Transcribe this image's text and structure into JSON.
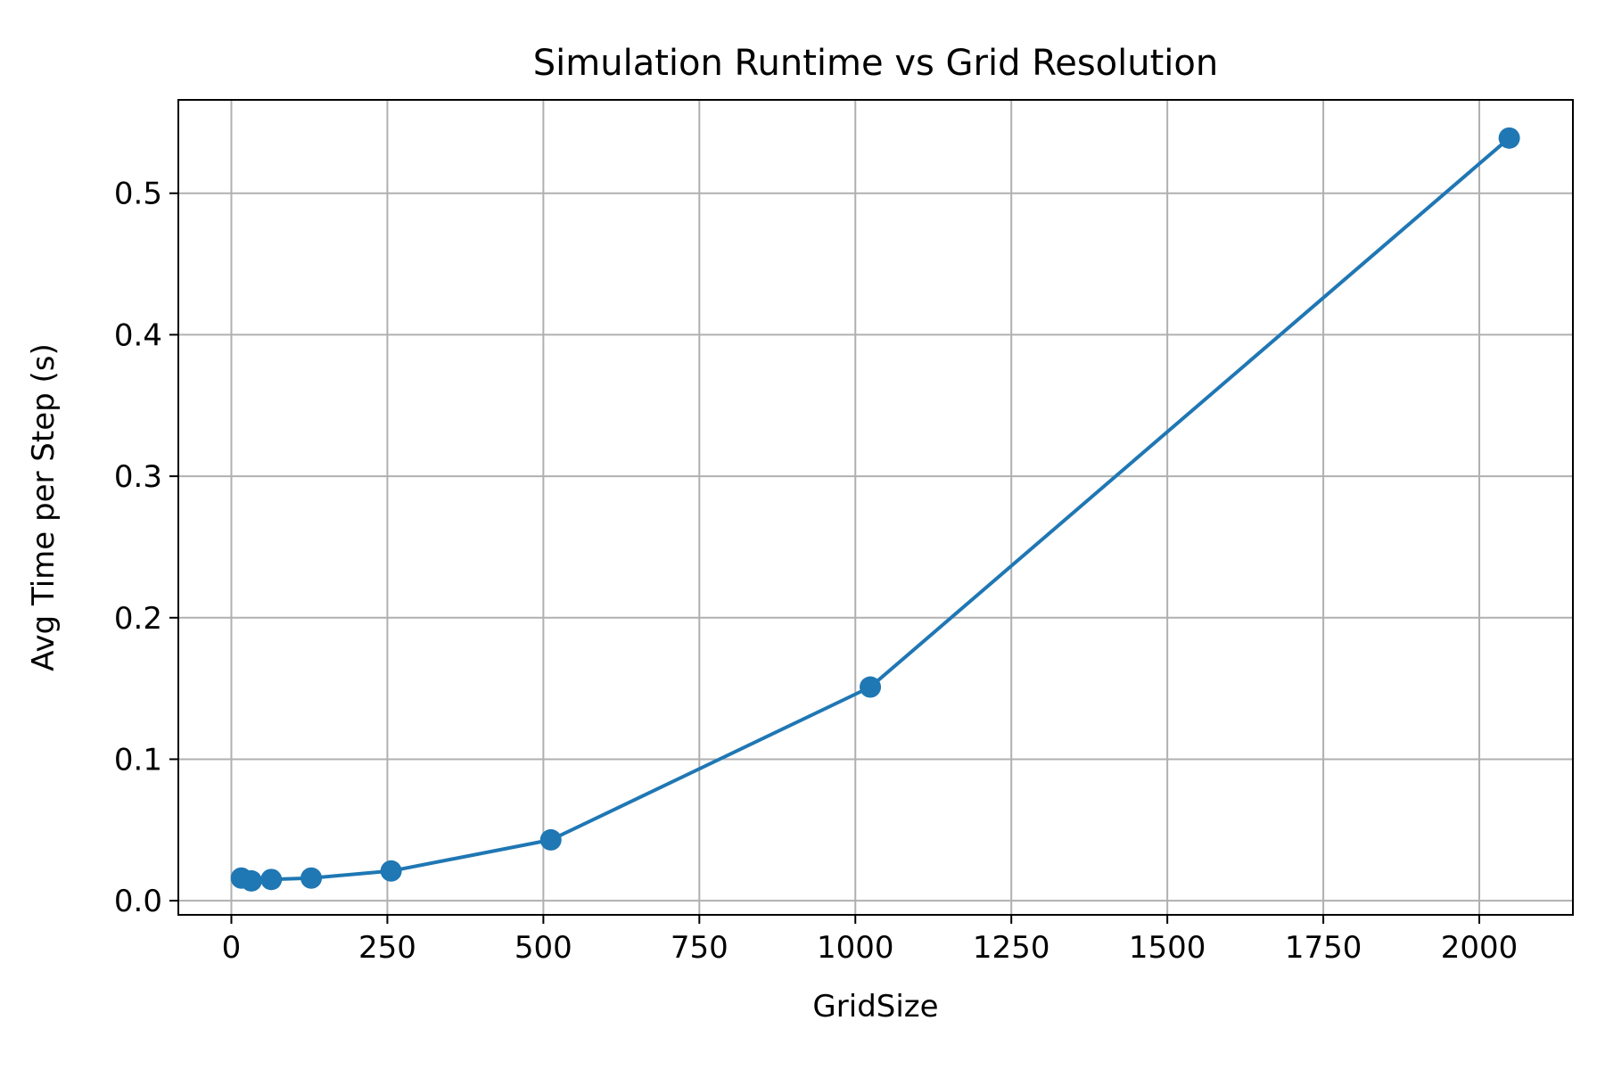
{
  "chart_data": {
    "type": "line",
    "title": "Simulation Runtime vs Grid Resolution",
    "xlabel": "GridSize",
    "ylabel": "Avg Time per Step (s)",
    "xlim": [
      -85,
      2150
    ],
    "ylim": [
      -0.01,
      0.566
    ],
    "xticks": [
      0,
      250,
      500,
      750,
      1000,
      1250,
      1500,
      1750,
      2000
    ],
    "yticks": [
      0.0,
      0.1,
      0.2,
      0.3,
      0.4,
      0.5
    ],
    "xtick_labels": [
      "0",
      "250",
      "500",
      "750",
      "1000",
      "1250",
      "1500",
      "1750",
      "2000"
    ],
    "ytick_labels": [
      "0.0",
      "0.1",
      "0.2",
      "0.3",
      "0.4",
      "0.5"
    ],
    "grid": true,
    "color": "#1f77b4",
    "series": [
      {
        "x": [
          16,
          32,
          64,
          128,
          256,
          512,
          1024,
          2048
        ],
        "y": [
          0.016,
          0.014,
          0.015,
          0.016,
          0.021,
          0.043,
          0.151,
          0.539
        ]
      }
    ]
  }
}
